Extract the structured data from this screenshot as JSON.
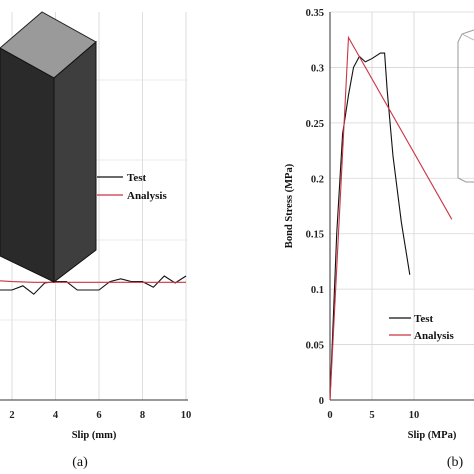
{
  "chart_data": [
    {
      "type": "line",
      "panel_label": "(a)",
      "xlabel": "Slip (mm)",
      "ylabel": "",
      "xlim": [
        0,
        10
      ],
      "x_ticks": [
        "2",
        "4",
        "6",
        "8",
        "10"
      ],
      "grid": true,
      "legend": {
        "placement": "center-right",
        "entries": [
          "Test",
          "Analysis"
        ]
      },
      "series": [
        {
          "name": "Test",
          "color": "#111111",
          "x": [
            0,
            1,
            2,
            2.5,
            3,
            3.5,
            4,
            4.5,
            5,
            5.5,
            6,
            6.5,
            7,
            7.5,
            8,
            8.5,
            9,
            9.5,
            10
          ],
          "y": [
            0.0,
            0.0,
            0.0,
            0.3,
            -0.3,
            0.5,
            0.6,
            0.6,
            0.0,
            0.0,
            0.0,
            0.6,
            0.8,
            0.6,
            0.6,
            0.2,
            1.0,
            0.5,
            1.0
          ]
        },
        {
          "name": "Analysis",
          "color": "#cc3344",
          "x": [
            0,
            1,
            2,
            3,
            4,
            5,
            6,
            7,
            8,
            9,
            10
          ],
          "y": [
            0.9,
            0.7,
            0.6,
            0.55,
            0.55,
            0.55,
            0.55,
            0.55,
            0.55,
            0.55,
            0.55
          ]
        }
      ]
    },
    {
      "type": "line",
      "panel_label": "(b)",
      "xlabel": "Slip (MPa)",
      "ylabel": "Bond Stress (MPa)",
      "xlim": [
        0,
        14.5
      ],
      "ylim": [
        0,
        0.35
      ],
      "x_ticks": [
        "0",
        "5",
        "10"
      ],
      "y_ticks": [
        "0",
        "0.05",
        "0.1",
        "0.15",
        "0.2",
        "0.25",
        "0.3",
        "0.35"
      ],
      "grid": true,
      "legend": {
        "placement": "bottom-right",
        "entries": [
          "Test",
          "Analysis"
        ]
      },
      "series": [
        {
          "name": "Test",
          "color": "#111111",
          "x": [
            0,
            0.8,
            1.5,
            2.2,
            2.8,
            3.5,
            4.2,
            5.0,
            6.0,
            6.5,
            6.8,
            7.5,
            8.5,
            9.5
          ],
          "y": [
            0.0,
            0.15,
            0.24,
            0.275,
            0.3,
            0.31,
            0.305,
            0.308,
            0.313,
            0.313,
            0.28,
            0.22,
            0.16,
            0.113
          ]
        },
        {
          "name": "Analysis",
          "color": "#cc3344",
          "x": [
            0,
            2.2,
            14.5
          ],
          "y": [
            0.0,
            0.327,
            0.163
          ]
        }
      ]
    }
  ]
}
